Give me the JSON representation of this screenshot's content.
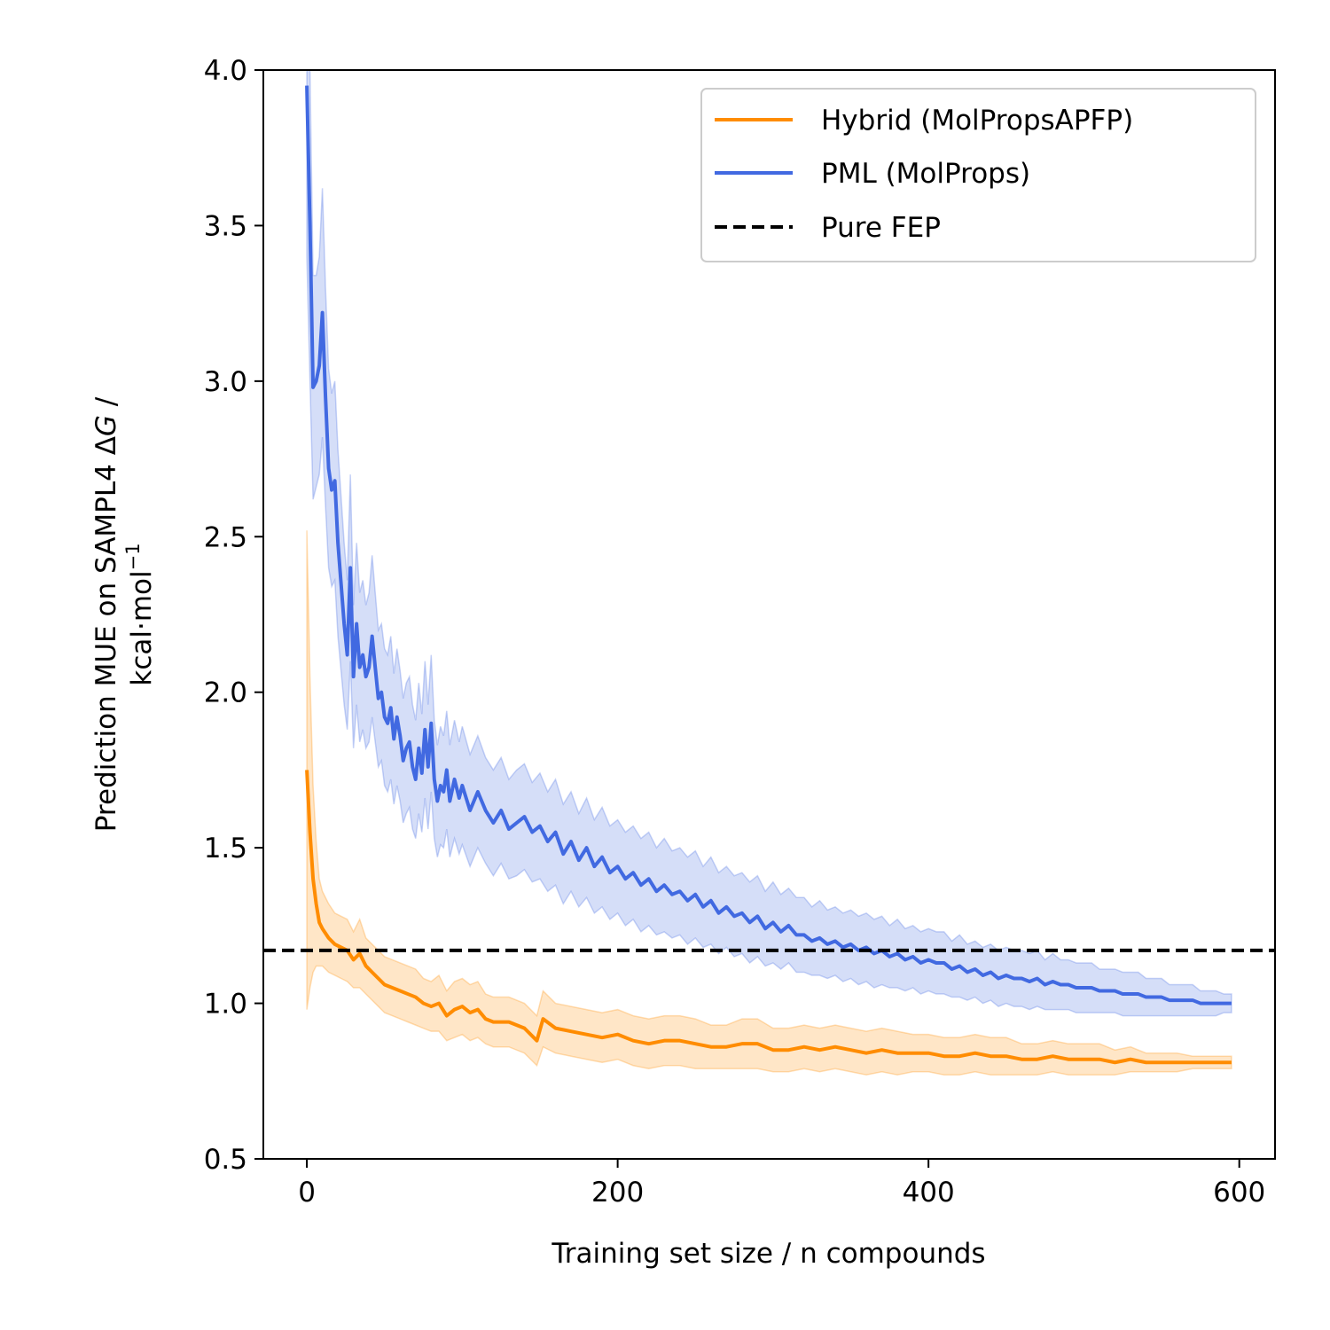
{
  "chart_data": {
    "type": "line",
    "title": "",
    "xlabel": "Training set size / n compounds",
    "ylabel_line1_prefix": "Prediction MUE on SAMPL4 Δ",
    "ylabel_line1_italic": "G",
    "ylabel_line1_suffix": " /",
    "ylabel_line2_main": "kcal·mol",
    "ylabel_line2_sup": "−1",
    "xlim": [
      -28,
      623
    ],
    "ylim": [
      0.5,
      4.0
    ],
    "xticks": [
      0,
      200,
      400,
      600
    ],
    "xtick_labels": [
      "0",
      "200",
      "400",
      "600"
    ],
    "yticks": [
      0.5,
      1.0,
      1.5,
      2.0,
      2.5,
      3.0,
      3.5,
      4.0
    ],
    "ytick_labels": [
      "0.5",
      "1.0",
      "1.5",
      "2.0",
      "2.5",
      "3.0",
      "3.5",
      "4.0"
    ],
    "grid": false,
    "legend_position": "top-right",
    "series": [
      {
        "name": "Hybrid (MolPropsAPFP)",
        "color": "#ff8c00",
        "style": "solid",
        "band": true,
        "x": [
          0,
          2,
          4,
          6,
          8,
          10,
          14,
          18,
          22,
          26,
          30,
          34,
          38,
          42,
          46,
          50,
          55,
          60,
          65,
          70,
          75,
          80,
          85,
          90,
          95,
          100,
          105,
          110,
          115,
          120,
          130,
          140,
          148,
          152,
          160,
          170,
          180,
          190,
          200,
          210,
          220,
          230,
          240,
          250,
          260,
          270,
          280,
          290,
          300,
          310,
          320,
          330,
          340,
          350,
          360,
          370,
          380,
          390,
          400,
          410,
          420,
          430,
          440,
          450,
          460,
          470,
          480,
          490,
          500,
          510,
          520,
          530,
          540,
          550,
          560,
          570,
          580,
          590,
          595
        ],
        "values": [
          1.75,
          1.55,
          1.4,
          1.32,
          1.26,
          1.24,
          1.21,
          1.19,
          1.18,
          1.17,
          1.14,
          1.16,
          1.12,
          1.1,
          1.08,
          1.06,
          1.05,
          1.04,
          1.03,
          1.02,
          1.0,
          0.99,
          1.0,
          0.96,
          0.98,
          0.99,
          0.97,
          0.98,
          0.95,
          0.94,
          0.94,
          0.92,
          0.88,
          0.95,
          0.92,
          0.91,
          0.9,
          0.89,
          0.9,
          0.88,
          0.87,
          0.88,
          0.88,
          0.87,
          0.86,
          0.86,
          0.87,
          0.87,
          0.85,
          0.85,
          0.86,
          0.85,
          0.86,
          0.85,
          0.84,
          0.85,
          0.84,
          0.84,
          0.84,
          0.83,
          0.83,
          0.84,
          0.83,
          0.83,
          0.82,
          0.82,
          0.83,
          0.82,
          0.82,
          0.82,
          0.81,
          0.82,
          0.81,
          0.81,
          0.81,
          0.81,
          0.81,
          0.81,
          0.81
        ],
        "lower": [
          0.98,
          1.05,
          1.1,
          1.12,
          1.12,
          1.12,
          1.1,
          1.09,
          1.08,
          1.07,
          1.05,
          1.05,
          1.03,
          1.01,
          0.99,
          0.97,
          0.96,
          0.95,
          0.94,
          0.93,
          0.92,
          0.91,
          0.91,
          0.88,
          0.89,
          0.9,
          0.88,
          0.89,
          0.87,
          0.86,
          0.86,
          0.84,
          0.8,
          0.86,
          0.84,
          0.83,
          0.82,
          0.81,
          0.82,
          0.8,
          0.79,
          0.8,
          0.8,
          0.79,
          0.79,
          0.79,
          0.79,
          0.79,
          0.78,
          0.78,
          0.79,
          0.78,
          0.79,
          0.78,
          0.77,
          0.78,
          0.77,
          0.78,
          0.78,
          0.77,
          0.77,
          0.78,
          0.77,
          0.77,
          0.77,
          0.77,
          0.78,
          0.77,
          0.77,
          0.77,
          0.77,
          0.78,
          0.78,
          0.78,
          0.78,
          0.79,
          0.79,
          0.79,
          0.79
        ],
        "upper": [
          2.52,
          2.05,
          1.7,
          1.52,
          1.4,
          1.36,
          1.32,
          1.29,
          1.28,
          1.27,
          1.23,
          1.27,
          1.21,
          1.19,
          1.17,
          1.15,
          1.14,
          1.13,
          1.12,
          1.11,
          1.08,
          1.07,
          1.09,
          1.04,
          1.07,
          1.08,
          1.06,
          1.07,
          1.03,
          1.02,
          1.02,
          1.0,
          0.96,
          1.04,
          1.0,
          0.99,
          0.98,
          0.97,
          0.98,
          0.96,
          0.95,
          0.96,
          0.96,
          0.95,
          0.93,
          0.93,
          0.95,
          0.95,
          0.92,
          0.92,
          0.93,
          0.92,
          0.93,
          0.92,
          0.91,
          0.92,
          0.91,
          0.9,
          0.9,
          0.89,
          0.89,
          0.9,
          0.89,
          0.89,
          0.87,
          0.87,
          0.88,
          0.87,
          0.87,
          0.87,
          0.85,
          0.86,
          0.84,
          0.84,
          0.84,
          0.83,
          0.83,
          0.83,
          0.83
        ]
      },
      {
        "name": "PML (MolProps)",
        "color": "#4169e1",
        "style": "solid",
        "band": true,
        "x": [
          0,
          2,
          4,
          6,
          8,
          10,
          12,
          14,
          16,
          18,
          20,
          22,
          24,
          26,
          28,
          30,
          32,
          34,
          36,
          38,
          40,
          42,
          44,
          46,
          48,
          50,
          52,
          54,
          56,
          58,
          60,
          62,
          64,
          66,
          68,
          70,
          72,
          74,
          76,
          78,
          80,
          82,
          84,
          86,
          88,
          90,
          92,
          95,
          98,
          100,
          105,
          110,
          115,
          120,
          125,
          130,
          135,
          140,
          145,
          150,
          155,
          160,
          165,
          170,
          175,
          180,
          185,
          190,
          195,
          200,
          205,
          210,
          215,
          220,
          225,
          230,
          235,
          240,
          245,
          250,
          255,
          260,
          265,
          270,
          275,
          280,
          285,
          290,
          295,
          300,
          305,
          310,
          315,
          320,
          325,
          330,
          335,
          340,
          345,
          350,
          355,
          360,
          365,
          370,
          375,
          380,
          385,
          390,
          395,
          400,
          405,
          410,
          415,
          420,
          425,
          430,
          435,
          440,
          445,
          450,
          455,
          460,
          465,
          470,
          475,
          480,
          485,
          490,
          495,
          500,
          505,
          510,
          515,
          520,
          525,
          530,
          535,
          540,
          545,
          550,
          555,
          560,
          565,
          570,
          575,
          580,
          585,
          590,
          595
        ],
        "values": [
          3.95,
          3.5,
          2.98,
          3.0,
          3.05,
          3.22,
          2.95,
          2.72,
          2.65,
          2.68,
          2.48,
          2.35,
          2.22,
          2.12,
          2.4,
          2.05,
          2.22,
          2.08,
          2.12,
          2.05,
          2.08,
          2.18,
          2.08,
          1.98,
          2.0,
          1.92,
          1.9,
          1.95,
          1.85,
          1.92,
          1.86,
          1.78,
          1.82,
          1.84,
          1.76,
          1.72,
          1.82,
          1.74,
          1.88,
          1.76,
          1.9,
          1.72,
          1.65,
          1.7,
          1.68,
          1.75,
          1.65,
          1.72,
          1.66,
          1.7,
          1.62,
          1.68,
          1.62,
          1.58,
          1.62,
          1.56,
          1.58,
          1.6,
          1.55,
          1.57,
          1.52,
          1.55,
          1.48,
          1.52,
          1.46,
          1.5,
          1.44,
          1.47,
          1.42,
          1.44,
          1.4,
          1.42,
          1.38,
          1.4,
          1.36,
          1.38,
          1.35,
          1.36,
          1.33,
          1.35,
          1.31,
          1.33,
          1.29,
          1.31,
          1.28,
          1.29,
          1.26,
          1.28,
          1.24,
          1.26,
          1.23,
          1.25,
          1.22,
          1.22,
          1.2,
          1.21,
          1.19,
          1.2,
          1.18,
          1.19,
          1.17,
          1.18,
          1.16,
          1.17,
          1.15,
          1.16,
          1.14,
          1.15,
          1.13,
          1.14,
          1.13,
          1.13,
          1.11,
          1.12,
          1.1,
          1.11,
          1.09,
          1.1,
          1.08,
          1.09,
          1.08,
          1.08,
          1.07,
          1.08,
          1.06,
          1.07,
          1.06,
          1.06,
          1.05,
          1.05,
          1.05,
          1.04,
          1.04,
          1.04,
          1.03,
          1.03,
          1.03,
          1.02,
          1.02,
          1.02,
          1.01,
          1.01,
          1.01,
          1.01,
          1.0,
          1.0,
          1.0,
          1.0,
          1.0
        ],
        "lower": [
          3.4,
          3.0,
          2.62,
          2.66,
          2.7,
          2.82,
          2.6,
          2.4,
          2.34,
          2.36,
          2.18,
          2.07,
          1.96,
          1.88,
          2.1,
          1.82,
          1.96,
          1.84,
          1.88,
          1.82,
          1.84,
          1.92,
          1.84,
          1.76,
          1.78,
          1.7,
          1.68,
          1.72,
          1.64,
          1.7,
          1.65,
          1.58,
          1.61,
          1.63,
          1.56,
          1.53,
          1.61,
          1.55,
          1.66,
          1.56,
          1.68,
          1.53,
          1.47,
          1.51,
          1.5,
          1.56,
          1.47,
          1.53,
          1.48,
          1.51,
          1.44,
          1.5,
          1.45,
          1.41,
          1.45,
          1.4,
          1.41,
          1.43,
          1.39,
          1.4,
          1.36,
          1.38,
          1.32,
          1.36,
          1.31,
          1.34,
          1.29,
          1.31,
          1.27,
          1.29,
          1.25,
          1.27,
          1.23,
          1.25,
          1.22,
          1.23,
          1.21,
          1.22,
          1.19,
          1.21,
          1.18,
          1.19,
          1.16,
          1.18,
          1.15,
          1.16,
          1.13,
          1.15,
          1.12,
          1.13,
          1.11,
          1.13,
          1.1,
          1.1,
          1.09,
          1.09,
          1.08,
          1.09,
          1.07,
          1.08,
          1.06,
          1.07,
          1.05,
          1.06,
          1.05,
          1.05,
          1.04,
          1.05,
          1.03,
          1.04,
          1.03,
          1.03,
          1.02,
          1.02,
          1.01,
          1.02,
          1.0,
          1.01,
          0.99,
          1.0,
          0.99,
          0.99,
          0.98,
          0.99,
          0.98,
          0.98,
          0.98,
          0.98,
          0.97,
          0.97,
          0.97,
          0.97,
          0.97,
          0.97,
          0.96,
          0.96,
          0.96,
          0.96,
          0.96,
          0.96,
          0.96,
          0.96,
          0.96,
          0.96,
          0.96,
          0.96,
          0.96,
          0.97,
          0.97
        ],
        "upper": [
          4.5,
          4.0,
          3.34,
          3.34,
          3.4,
          3.62,
          3.3,
          3.04,
          2.96,
          3.0,
          2.78,
          2.63,
          2.48,
          2.36,
          2.7,
          2.28,
          2.48,
          2.32,
          2.36,
          2.28,
          2.32,
          2.44,
          2.32,
          2.2,
          2.22,
          2.14,
          2.12,
          2.18,
          2.06,
          2.14,
          2.07,
          1.98,
          2.03,
          2.05,
          1.96,
          1.91,
          2.03,
          1.93,
          2.1,
          1.96,
          2.12,
          1.91,
          1.83,
          1.89,
          1.86,
          1.94,
          1.83,
          1.91,
          1.84,
          1.89,
          1.8,
          1.86,
          1.79,
          1.75,
          1.79,
          1.72,
          1.75,
          1.77,
          1.71,
          1.74,
          1.68,
          1.72,
          1.64,
          1.68,
          1.61,
          1.66,
          1.59,
          1.63,
          1.57,
          1.59,
          1.55,
          1.57,
          1.53,
          1.55,
          1.5,
          1.53,
          1.49,
          1.5,
          1.47,
          1.49,
          1.44,
          1.47,
          1.42,
          1.44,
          1.41,
          1.42,
          1.39,
          1.41,
          1.36,
          1.39,
          1.35,
          1.37,
          1.34,
          1.34,
          1.31,
          1.33,
          1.3,
          1.31,
          1.29,
          1.3,
          1.28,
          1.29,
          1.27,
          1.28,
          1.25,
          1.27,
          1.24,
          1.25,
          1.23,
          1.24,
          1.23,
          1.23,
          1.2,
          1.22,
          1.19,
          1.2,
          1.18,
          1.19,
          1.17,
          1.18,
          1.17,
          1.17,
          1.16,
          1.17,
          1.14,
          1.16,
          1.14,
          1.14,
          1.13,
          1.13,
          1.13,
          1.11,
          1.11,
          1.11,
          1.1,
          1.1,
          1.1,
          1.08,
          1.08,
          1.08,
          1.06,
          1.06,
          1.06,
          1.06,
          1.04,
          1.04,
          1.04,
          1.03,
          1.03
        ]
      },
      {
        "name": "Pure FEP",
        "color": "#000000",
        "style": "dashed",
        "band": false,
        "constant": 1.17
      }
    ]
  }
}
